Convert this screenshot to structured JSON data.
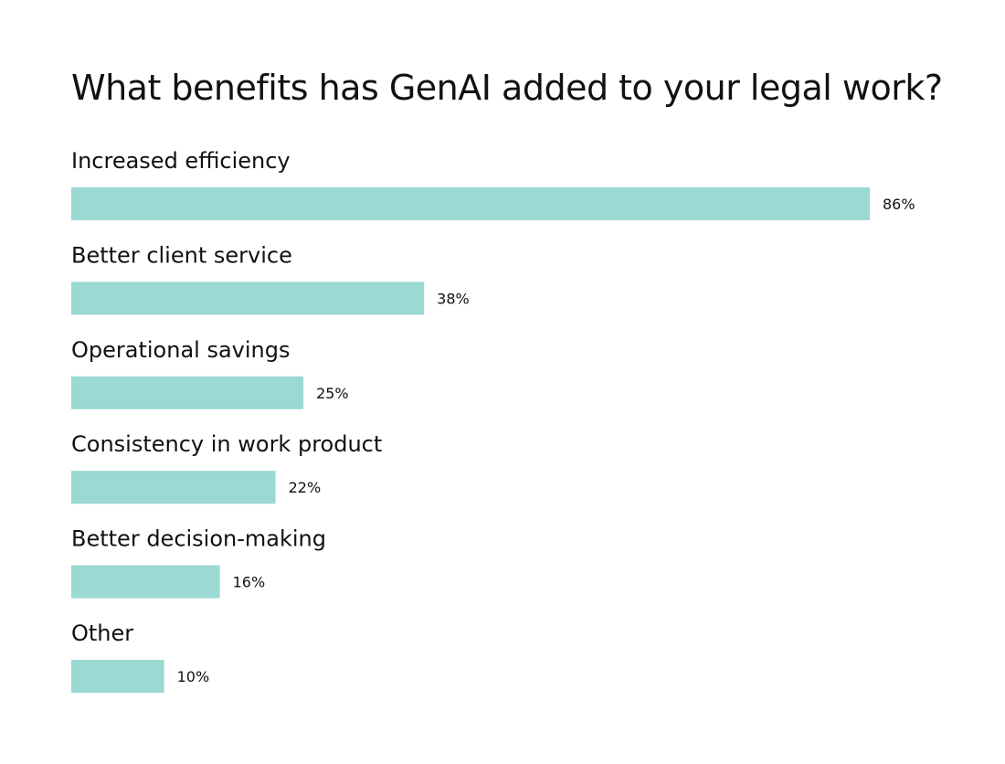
{
  "chart_data": {
    "type": "bar",
    "orientation": "horizontal",
    "title": "What benefits has GenAI added to your legal work?",
    "categories": [
      "Increased efficiency",
      "Better client service",
      "Operational savings",
      "Consistency in work product",
      "Better decision-making",
      "Other"
    ],
    "values": [
      86,
      38,
      25,
      22,
      16,
      10
    ],
    "value_labels": [
      "86%",
      "38%",
      "25%",
      "22%",
      "16%",
      "10%"
    ],
    "unit": "%",
    "xlim": [
      0,
      100
    ],
    "grid": false,
    "legend": "none",
    "bar_color": "#9bd9d3"
  }
}
